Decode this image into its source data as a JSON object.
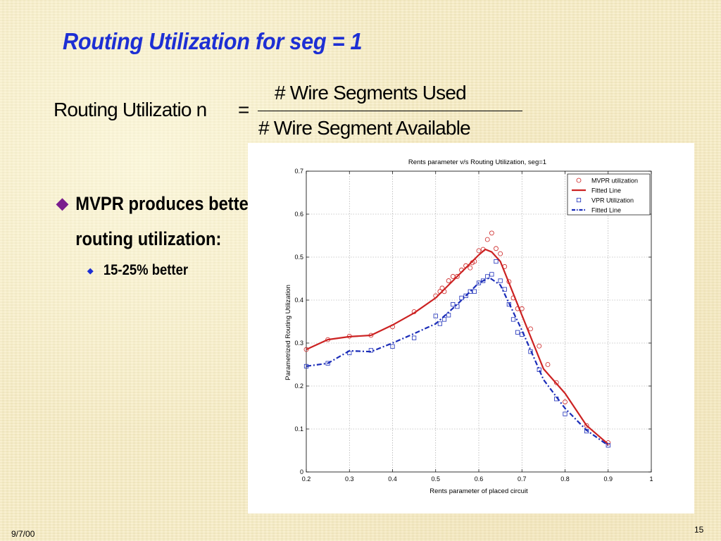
{
  "slide": {
    "title": "Routing Utilization for seg = 1",
    "formula": {
      "lhs": "Routing Utilizatio n",
      "equals": "=",
      "numerator": "# Wire Segments  Used",
      "denominator": "# Wire Segment  Available"
    },
    "bullets": [
      {
        "text": "MVPR produces better routing utilization:",
        "marker": "diamond-bullet-icon",
        "color": "#7a1d8e"
      },
      {
        "text": "15-25% better",
        "marker": "small-diamond-bullet-icon",
        "color": "#1d2fd4"
      }
    ],
    "footer": {
      "date": "9/7/00",
      "page": "15"
    }
  },
  "colors": {
    "title": "#1d2fd4",
    "mvpr": "#cc2222",
    "vpr": "#1a2cb8",
    "background": "#f7ecc3"
  },
  "chart_data": {
    "type": "scatter",
    "title": "Rents parameter v/s Routing Utilization, seg=1",
    "xlabel": "Rents parameter of placed circuit",
    "ylabel": "Parametrized Routing Utilization",
    "xlim": [
      0.2,
      1
    ],
    "ylim": [
      0,
      0.7
    ],
    "xticks": [
      "0.2",
      "0.3",
      "0.4",
      "0.5",
      "0.6",
      "0.7",
      "0.8",
      "0.9",
      "1"
    ],
    "yticks": [
      "0",
      "0.1",
      "0.2",
      "0.3",
      "0.4",
      "0.5",
      "0.6",
      "0.7"
    ],
    "grid": true,
    "legend_position": "top-right",
    "series": [
      {
        "name": "MVPR utilization",
        "kind": "marker",
        "marker": "circle",
        "color": "#cc2222",
        "points": [
          [
            0.2,
            0.285
          ],
          [
            0.25,
            0.308
          ],
          [
            0.3,
            0.316
          ],
          [
            0.35,
            0.318
          ],
          [
            0.4,
            0.338
          ],
          [
            0.45,
            0.373
          ],
          [
            0.5,
            0.41
          ],
          [
            0.51,
            0.42
          ],
          [
            0.515,
            0.428
          ],
          [
            0.52,
            0.42
          ],
          [
            0.53,
            0.445
          ],
          [
            0.54,
            0.455
          ],
          [
            0.55,
            0.455
          ],
          [
            0.56,
            0.47
          ],
          [
            0.57,
            0.48
          ],
          [
            0.58,
            0.475
          ],
          [
            0.585,
            0.487
          ],
          [
            0.59,
            0.49
          ],
          [
            0.6,
            0.515
          ],
          [
            0.61,
            0.518
          ],
          [
            0.62,
            0.541
          ],
          [
            0.63,
            0.556
          ],
          [
            0.64,
            0.52
          ],
          [
            0.65,
            0.508
          ],
          [
            0.66,
            0.478
          ],
          [
            0.67,
            0.443
          ],
          [
            0.68,
            0.405
          ],
          [
            0.69,
            0.38
          ],
          [
            0.7,
            0.38
          ],
          [
            0.72,
            0.333
          ],
          [
            0.74,
            0.293
          ],
          [
            0.76,
            0.25
          ],
          [
            0.78,
            0.208
          ],
          [
            0.8,
            0.163
          ],
          [
            0.85,
            0.108
          ],
          [
            0.9,
            0.068
          ]
        ]
      },
      {
        "name": "Fitted Line",
        "kind": "line",
        "style": "solid",
        "color": "#cc2222",
        "points": [
          [
            0.2,
            0.285
          ],
          [
            0.25,
            0.308
          ],
          [
            0.3,
            0.315
          ],
          [
            0.35,
            0.318
          ],
          [
            0.4,
            0.342
          ],
          [
            0.45,
            0.37
          ],
          [
            0.5,
            0.405
          ],
          [
            0.55,
            0.455
          ],
          [
            0.6,
            0.505
          ],
          [
            0.615,
            0.518
          ],
          [
            0.63,
            0.512
          ],
          [
            0.65,
            0.49
          ],
          [
            0.7,
            0.365
          ],
          [
            0.75,
            0.24
          ],
          [
            0.8,
            0.183
          ],
          [
            0.85,
            0.108
          ],
          [
            0.9,
            0.065
          ]
        ]
      },
      {
        "name": "VPR Utilization",
        "kind": "marker",
        "marker": "square",
        "color": "#1a2cb8",
        "points": [
          [
            0.2,
            0.246
          ],
          [
            0.25,
            0.253
          ],
          [
            0.3,
            0.277
          ],
          [
            0.35,
            0.283
          ],
          [
            0.4,
            0.292
          ],
          [
            0.45,
            0.312
          ],
          [
            0.5,
            0.363
          ],
          [
            0.51,
            0.345
          ],
          [
            0.52,
            0.355
          ],
          [
            0.53,
            0.365
          ],
          [
            0.54,
            0.39
          ],
          [
            0.55,
            0.385
          ],
          [
            0.56,
            0.405
          ],
          [
            0.57,
            0.41
          ],
          [
            0.58,
            0.42
          ],
          [
            0.59,
            0.42
          ],
          [
            0.6,
            0.44
          ],
          [
            0.61,
            0.445
          ],
          [
            0.62,
            0.455
          ],
          [
            0.63,
            0.46
          ],
          [
            0.64,
            0.49
          ],
          [
            0.65,
            0.445
          ],
          [
            0.66,
            0.425
          ],
          [
            0.67,
            0.39
          ],
          [
            0.68,
            0.355
          ],
          [
            0.69,
            0.325
          ],
          [
            0.7,
            0.32
          ],
          [
            0.72,
            0.28
          ],
          [
            0.74,
            0.238
          ],
          [
            0.78,
            0.17
          ],
          [
            0.8,
            0.135
          ],
          [
            0.85,
            0.095
          ],
          [
            0.9,
            0.062
          ]
        ]
      },
      {
        "name": "Fitted Line",
        "kind": "line",
        "style": "dash-dot",
        "color": "#1a2cb8",
        "points": [
          [
            0.2,
            0.246
          ],
          [
            0.25,
            0.253
          ],
          [
            0.3,
            0.282
          ],
          [
            0.35,
            0.28
          ],
          [
            0.4,
            0.3
          ],
          [
            0.45,
            0.322
          ],
          [
            0.5,
            0.345
          ],
          [
            0.55,
            0.39
          ],
          [
            0.6,
            0.44
          ],
          [
            0.625,
            0.452
          ],
          [
            0.65,
            0.435
          ],
          [
            0.7,
            0.33
          ],
          [
            0.75,
            0.215
          ],
          [
            0.8,
            0.148
          ],
          [
            0.85,
            0.097
          ],
          [
            0.9,
            0.062
          ]
        ]
      }
    ]
  }
}
